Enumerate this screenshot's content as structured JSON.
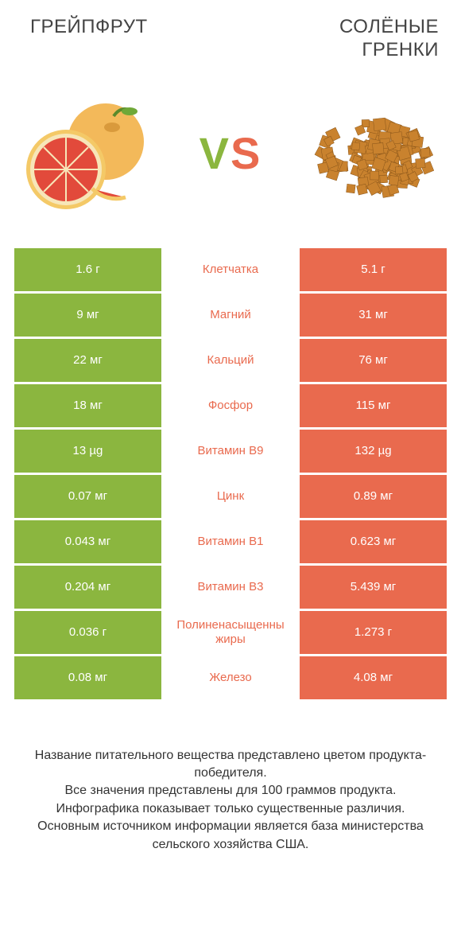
{
  "titles": {
    "left": "ГРЕЙПФРУТ",
    "right": "СОЛЁНЫЕ\nГРЕНКИ"
  },
  "vs_label": "VS",
  "colors": {
    "left_bg": "#8bb63f",
    "right_bg": "#e96a4e",
    "mid_text_left_winner": "#8bb63f",
    "mid_text_right_winner": "#e96a4e",
    "vs_gradient_from": "#8bb63f",
    "vs_gradient_to": "#e96a4e"
  },
  "rows": [
    {
      "nutrient": "Клетчатка",
      "left": "1.6 г",
      "right": "5.1 г",
      "winner": "right"
    },
    {
      "nutrient": "Магний",
      "left": "9 мг",
      "right": "31 мг",
      "winner": "right"
    },
    {
      "nutrient": "Кальций",
      "left": "22 мг",
      "right": "76 мг",
      "winner": "right"
    },
    {
      "nutrient": "Фосфор",
      "left": "18 мг",
      "right": "115 мг",
      "winner": "right"
    },
    {
      "nutrient": "Витамин B9",
      "left": "13 µg",
      "right": "132 µg",
      "winner": "right"
    },
    {
      "nutrient": "Цинк",
      "left": "0.07 мг",
      "right": "0.89 мг",
      "winner": "right"
    },
    {
      "nutrient": "Витамин B1",
      "left": "0.043 мг",
      "right": "0.623 мг",
      "winner": "right"
    },
    {
      "nutrient": "Витамин B3",
      "left": "0.204 мг",
      "right": "5.439 мг",
      "winner": "right"
    },
    {
      "nutrient": "Полиненасыщенны жиры",
      "left": "0.036 г",
      "right": "1.273 г",
      "winner": "right"
    },
    {
      "nutrient": "Железо",
      "left": "0.08 мг",
      "right": "4.08 мг",
      "winner": "right"
    }
  ],
  "footnotes": [
    "Название питательного вещества представлено цветом продукта-победителя.",
    "Все значения представлены для 100 граммов продукта.",
    "Инфографика показывает только существенные различия.",
    "Основным источником информации является база министерства сельского хозяйства США."
  ]
}
